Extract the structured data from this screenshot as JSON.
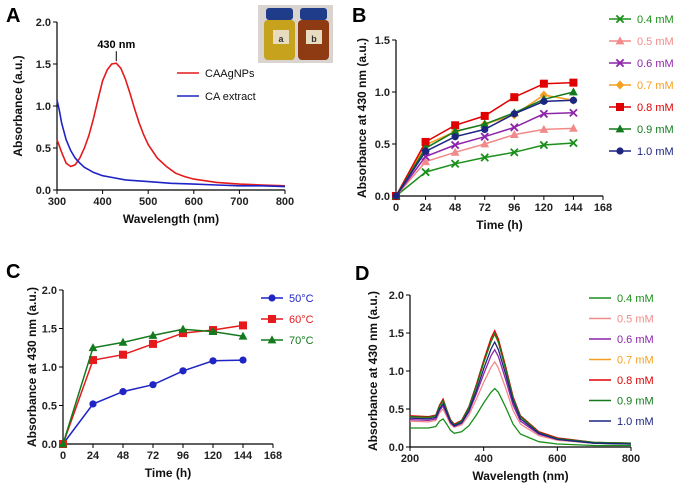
{
  "figure": {
    "panels": [
      {
        "letter": "A"
      },
      {
        "letter": "B"
      },
      {
        "letter": "C"
      },
      {
        "letter": "D"
      }
    ],
    "vial_labels": [
      "a",
      "b"
    ],
    "colors": {
      "red": "#e41a1c",
      "blue": "#1f24c4",
      "green": "#1a8f1a",
      "pink": "#f28a8a",
      "purple": "#8e24aa",
      "orange": "#f5a020",
      "darkred": "#e00000",
      "darkgreen": "#137a1d",
      "navy": "#1c2580",
      "vial_a": "#c7a21c",
      "vial_b": "#8e3a12",
      "vial_cap": "#1f3c8a"
    }
  },
  "chart_data": [
    {
      "panel": "A",
      "type": "line",
      "xlabel": "Wavelength (nm)",
      "ylabel": "Absorbance (a.u.)",
      "xlim": [
        300,
        800
      ],
      "ylim": [
        0,
        2.0
      ],
      "xticks": [
        "300",
        "400",
        "500",
        "600",
        "700",
        "800"
      ],
      "yticks": [
        "0.0",
        "0.5",
        "1.0",
        "1.5",
        "2.0"
      ],
      "annotation": "430 nm",
      "series": [
        {
          "name": "CAAgNPs",
          "color": "#e41a1c",
          "x": [
            300,
            310,
            320,
            330,
            340,
            350,
            360,
            370,
            380,
            390,
            400,
            410,
            420,
            430,
            440,
            450,
            460,
            470,
            480,
            490,
            500,
            520,
            540,
            560,
            580,
            600,
            650,
            700,
            750,
            800
          ],
          "y": [
            0.6,
            0.45,
            0.32,
            0.28,
            0.3,
            0.38,
            0.5,
            0.65,
            0.85,
            1.08,
            1.3,
            1.43,
            1.5,
            1.51,
            1.45,
            1.32,
            1.15,
            0.97,
            0.8,
            0.66,
            0.54,
            0.38,
            0.28,
            0.2,
            0.16,
            0.13,
            0.09,
            0.07,
            0.06,
            0.05
          ]
        },
        {
          "name": "CA extract",
          "color": "#1f24c4",
          "x": [
            300,
            305,
            310,
            320,
            330,
            340,
            350,
            360,
            370,
            380,
            400,
            420,
            450,
            500,
            550,
            600,
            650,
            700,
            750,
            800
          ],
          "y": [
            1.07,
            0.95,
            0.8,
            0.6,
            0.47,
            0.38,
            0.32,
            0.27,
            0.24,
            0.21,
            0.17,
            0.15,
            0.12,
            0.1,
            0.08,
            0.07,
            0.06,
            0.05,
            0.05,
            0.04
          ]
        }
      ]
    },
    {
      "panel": "B",
      "type": "line",
      "xlabel": "Time (h)",
      "ylabel": "Absorbance at 430 nm (a.u.)",
      "xlim": [
        0,
        168
      ],
      "ylim": [
        0,
        1.5
      ],
      "xticks": [
        "0",
        "24",
        "48",
        "72",
        "96",
        "120",
        "144",
        "168"
      ],
      "yticks": [
        "0.0",
        "0.5",
        "1.0",
        "1.5"
      ],
      "x": [
        0,
        24,
        48,
        72,
        96,
        120,
        144
      ],
      "series": [
        {
          "name": "0.4 mM",
          "color": "#1a8f1a",
          "marker": "x",
          "values": [
            0,
            0.23,
            0.31,
            0.37,
            0.42,
            0.49,
            0.51
          ]
        },
        {
          "name": "0.5 mM",
          "color": "#f28a8a",
          "marker": "tri",
          "values": [
            0,
            0.33,
            0.42,
            0.5,
            0.59,
            0.64,
            0.65
          ]
        },
        {
          "name": "0.6 mM",
          "color": "#8e24aa",
          "marker": "x",
          "values": [
            0,
            0.38,
            0.49,
            0.57,
            0.66,
            0.79,
            0.8
          ]
        },
        {
          "name": "0.7 mM",
          "color": "#f5a020",
          "marker": "diamond",
          "values": [
            0,
            0.49,
            0.62,
            0.69,
            0.78,
            0.97,
            0.92
          ]
        },
        {
          "name": "0.8 mM",
          "color": "#e00000",
          "marker": "square",
          "values": [
            0,
            0.52,
            0.68,
            0.77,
            0.95,
            1.08,
            1.09
          ]
        },
        {
          "name": "0.9 mM",
          "color": "#137a1d",
          "marker": "tri",
          "values": [
            0,
            0.46,
            0.62,
            0.69,
            0.8,
            0.93,
            1.0
          ]
        },
        {
          "name": "1.0 mM",
          "color": "#1c2580",
          "marker": "circle",
          "values": [
            0,
            0.43,
            0.57,
            0.64,
            0.79,
            0.91,
            0.92
          ]
        }
      ]
    },
    {
      "panel": "C",
      "type": "line",
      "xlabel": "Time (h)",
      "ylabel": "Absorbance at 430 nm (a.u.)",
      "xlim": [
        0,
        168
      ],
      "ylim": [
        0,
        2.0
      ],
      "xticks": [
        "0",
        "24",
        "48",
        "72",
        "96",
        "120",
        "144",
        "168"
      ],
      "yticks": [
        "0.0",
        "0.5",
        "1.0",
        "1.5",
        "2.0"
      ],
      "x": [
        0,
        24,
        48,
        72,
        96,
        120,
        144
      ],
      "series": [
        {
          "name": "50°C",
          "color": "#1f24c4",
          "marker": "circle",
          "values": [
            0,
            0.52,
            0.68,
            0.77,
            0.95,
            1.08,
            1.09
          ]
        },
        {
          "name": "60°C",
          "color": "#e41a1c",
          "marker": "square",
          "values": [
            0,
            1.09,
            1.16,
            1.3,
            1.44,
            1.48,
            1.54
          ]
        },
        {
          "name": "70°C",
          "color": "#137a1d",
          "marker": "tri",
          "values": [
            0,
            1.25,
            1.32,
            1.41,
            1.49,
            1.46,
            1.4
          ]
        }
      ]
    },
    {
      "panel": "D",
      "type": "line",
      "xlabel": "Wavelength (nm)",
      "ylabel": "Absorbance at 430 nm (a.u.)",
      "xlim": [
        200,
        800
      ],
      "ylim": [
        0,
        2.0
      ],
      "xticks": [
        "200",
        "400",
        "600",
        "800"
      ],
      "yticks": [
        "0.0",
        "0.5",
        "1.0",
        "1.5",
        "2.0"
      ],
      "x": [
        200,
        250,
        270,
        280,
        290,
        300,
        310,
        320,
        340,
        360,
        380,
        400,
        420,
        430,
        440,
        460,
        480,
        500,
        550,
        600,
        700,
        800
      ],
      "series": [
        {
          "name": "0.4 mM",
          "color": "#1a8f1a",
          "values": [
            0.25,
            0.25,
            0.27,
            0.34,
            0.37,
            0.3,
            0.22,
            0.18,
            0.2,
            0.28,
            0.42,
            0.58,
            0.72,
            0.77,
            0.72,
            0.52,
            0.3,
            0.17,
            0.07,
            0.04,
            0.02,
            0.02
          ]
        },
        {
          "name": "0.5 mM",
          "color": "#f28a8a",
          "values": [
            0.34,
            0.33,
            0.35,
            0.45,
            0.5,
            0.4,
            0.3,
            0.26,
            0.29,
            0.42,
            0.63,
            0.85,
            1.05,
            1.12,
            1.04,
            0.77,
            0.48,
            0.3,
            0.15,
            0.09,
            0.05,
            0.04
          ]
        },
        {
          "name": "0.6 mM",
          "color": "#8e24aa",
          "values": [
            0.36,
            0.35,
            0.37,
            0.48,
            0.54,
            0.43,
            0.32,
            0.27,
            0.31,
            0.46,
            0.7,
            0.96,
            1.2,
            1.28,
            1.19,
            0.88,
            0.55,
            0.34,
            0.17,
            0.1,
            0.05,
            0.04
          ]
        },
        {
          "name": "0.7 mM",
          "color": "#f5a020",
          "values": [
            0.39,
            0.38,
            0.4,
            0.53,
            0.6,
            0.47,
            0.35,
            0.29,
            0.34,
            0.51,
            0.79,
            1.1,
            1.38,
            1.48,
            1.37,
            1.01,
            0.63,
            0.39,
            0.19,
            0.11,
            0.06,
            0.05
          ]
        },
        {
          "name": "0.8 mM",
          "color": "#e00000",
          "values": [
            0.41,
            0.4,
            0.42,
            0.55,
            0.63,
            0.49,
            0.36,
            0.3,
            0.35,
            0.53,
            0.82,
            1.14,
            1.43,
            1.53,
            1.42,
            1.05,
            0.66,
            0.41,
            0.2,
            0.12,
            0.06,
            0.05
          ]
        },
        {
          "name": "0.9 mM",
          "color": "#137a1d",
          "values": [
            0.4,
            0.39,
            0.41,
            0.54,
            0.61,
            0.48,
            0.35,
            0.29,
            0.34,
            0.52,
            0.8,
            1.11,
            1.39,
            1.49,
            1.38,
            1.02,
            0.64,
            0.4,
            0.19,
            0.11,
            0.06,
            0.05
          ]
        },
        {
          "name": "1.0 mM",
          "color": "#1c2580",
          "values": [
            0.38,
            0.37,
            0.39,
            0.5,
            0.57,
            0.45,
            0.33,
            0.28,
            0.32,
            0.48,
            0.74,
            1.03,
            1.29,
            1.38,
            1.28,
            0.95,
            0.6,
            0.37,
            0.18,
            0.1,
            0.05,
            0.04
          ]
        }
      ]
    }
  ]
}
